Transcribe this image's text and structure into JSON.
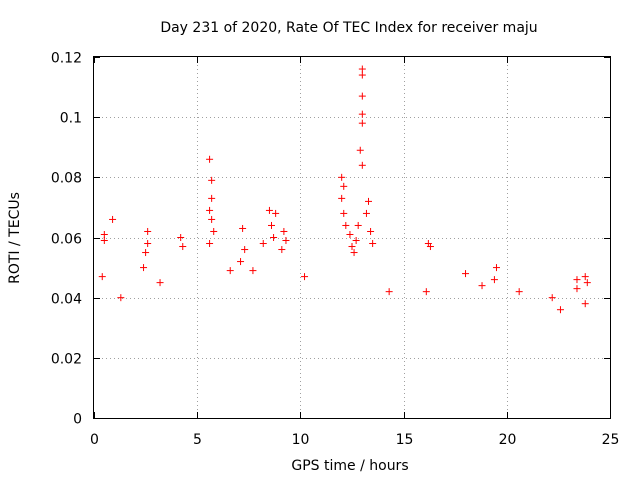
{
  "chart_data": {
    "type": "scatter",
    "title": "Day 231 of 2020, Rate Of TEC Index for receiver maju",
    "xlabel": "GPS time / hours",
    "ylabel": "ROTI / TECUs",
    "xlim": [
      0,
      25
    ],
    "ylim": [
      0,
      0.12
    ],
    "xticks": [
      0,
      5,
      10,
      15,
      20,
      25
    ],
    "xtick_labels": [
      "0",
      "5",
      "10",
      "15",
      "20",
      "25"
    ],
    "yticks": [
      0,
      0.02,
      0.04,
      0.06,
      0.08,
      0.1,
      0.12
    ],
    "ytick_labels": [
      "0",
      "0.02",
      "0.04",
      "0.06",
      "0.08",
      "0.1",
      "0.12"
    ],
    "grid": true,
    "marker": "+",
    "color": "#ff0000",
    "series": [
      {
        "name": "ROTI",
        "points": [
          [
            0.5,
            0.061
          ],
          [
            0.5,
            0.059
          ],
          [
            0.9,
            0.066
          ],
          [
            0.4,
            0.047
          ],
          [
            1.3,
            0.04
          ],
          [
            2.6,
            0.062
          ],
          [
            2.6,
            0.058
          ],
          [
            2.5,
            0.055
          ],
          [
            2.4,
            0.05
          ],
          [
            3.2,
            0.045
          ],
          [
            4.2,
            0.06
          ],
          [
            4.3,
            0.057
          ],
          [
            5.6,
            0.086
          ],
          [
            5.7,
            0.079
          ],
          [
            5.7,
            0.073
          ],
          [
            5.6,
            0.069
          ],
          [
            5.7,
            0.066
          ],
          [
            5.8,
            0.062
          ],
          [
            5.6,
            0.058
          ],
          [
            6.6,
            0.049
          ],
          [
            7.2,
            0.063
          ],
          [
            7.3,
            0.056
          ],
          [
            7.1,
            0.052
          ],
          [
            7.7,
            0.049
          ],
          [
            8.2,
            0.058
          ],
          [
            8.5,
            0.069
          ],
          [
            8.6,
            0.064
          ],
          [
            8.7,
            0.06
          ],
          [
            8.8,
            0.068
          ],
          [
            9.2,
            0.062
          ],
          [
            9.3,
            0.059
          ],
          [
            9.1,
            0.056
          ],
          [
            10.2,
            0.047
          ],
          [
            12.0,
            0.08
          ],
          [
            12.1,
            0.077
          ],
          [
            12.0,
            0.073
          ],
          [
            12.1,
            0.068
          ],
          [
            12.2,
            0.064
          ],
          [
            12.4,
            0.061
          ],
          [
            12.5,
            0.057
          ],
          [
            12.7,
            0.059
          ],
          [
            12.8,
            0.064
          ],
          [
            12.6,
            0.055
          ],
          [
            13.0,
            0.116
          ],
          [
            13.0,
            0.114
          ],
          [
            13.0,
            0.107
          ],
          [
            13.0,
            0.101
          ],
          [
            13.0,
            0.098
          ],
          [
            12.9,
            0.089
          ],
          [
            13.0,
            0.084
          ],
          [
            13.3,
            0.072
          ],
          [
            13.2,
            0.068
          ],
          [
            13.4,
            0.062
          ],
          [
            13.5,
            0.058
          ],
          [
            14.3,
            0.042
          ],
          [
            16.2,
            0.058
          ],
          [
            16.3,
            0.057
          ],
          [
            16.1,
            0.042
          ],
          [
            18.0,
            0.048
          ],
          [
            18.8,
            0.044
          ],
          [
            19.5,
            0.05
          ],
          [
            19.4,
            0.046
          ],
          [
            20.6,
            0.042
          ],
          [
            22.2,
            0.04
          ],
          [
            22.6,
            0.036
          ],
          [
            23.4,
            0.046
          ],
          [
            23.4,
            0.043
          ],
          [
            23.8,
            0.047
          ],
          [
            23.8,
            0.038
          ],
          [
            23.9,
            0.045
          ]
        ]
      }
    ]
  }
}
